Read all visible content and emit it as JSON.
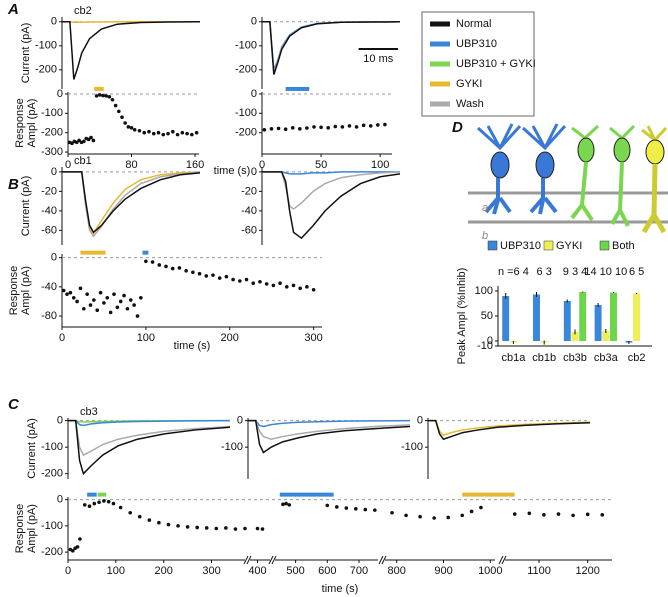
{
  "panels": [
    "A",
    "B",
    "C",
    "D"
  ],
  "legend": [
    {
      "name": "Normal",
      "color": "#111111"
    },
    {
      "name": "UBP310",
      "color": "#3a86d8"
    },
    {
      "name": "UBP310 + GYKI",
      "color": "#7ad64f"
    },
    {
      "name": "GYKI",
      "color": "#e8b830"
    },
    {
      "name": "Wash",
      "color": "#aaaaaa"
    }
  ],
  "diagram": {
    "labels": [
      "a",
      "b"
    ]
  },
  "chart_data": [
    {
      "type": "line",
      "label": "cb2",
      "ylabel": "Current (pA)",
      "xlim": [
        0,
        35
      ],
      "ylim": [
        -280,
        20
      ],
      "yticks": [
        0,
        -100,
        -200
      ],
      "zero_line": true,
      "x": [
        0,
        2,
        2.5,
        3,
        4,
        5,
        7,
        10,
        14,
        20,
        27,
        35
      ],
      "series": [
        {
          "color": "#e8b830",
          "values": [
            0,
            0,
            -1,
            -2,
            -2,
            -2,
            -1,
            -1,
            0,
            0,
            0,
            0
          ]
        },
        {
          "color": "#111111",
          "values": [
            0,
            0,
            -120,
            -240,
            -190,
            -130,
            -70,
            -30,
            -10,
            -3,
            -1,
            0
          ]
        }
      ]
    },
    {
      "type": "line",
      "xlim": [
        0,
        35
      ],
      "ylim": [
        -280,
        20
      ],
      "yticks": [
        0,
        -100,
        -200
      ],
      "zero_line": true,
      "scalebar": {
        "label": "10 ms",
        "length": 10
      },
      "x": [
        0,
        2,
        2.5,
        3,
        4,
        5,
        7,
        10,
        14,
        20,
        27,
        35
      ],
      "series": [
        {
          "color": "#3a86d8",
          "values": [
            0,
            0,
            -100,
            -200,
            -160,
            -105,
            -55,
            -22,
            -7,
            -2,
            -1,
            0
          ]
        },
        {
          "color": "#aaaaaa",
          "values": [
            0,
            0,
            -105,
            -210,
            -165,
            -110,
            -58,
            -24,
            -8,
            -2,
            -1,
            0
          ]
        },
        {
          "color": "#111111",
          "values": [
            0,
            0,
            -110,
            -220,
            -170,
            -115,
            -60,
            -25,
            -8,
            -2,
            -1,
            0
          ]
        }
      ]
    },
    {
      "type": "scatter",
      "ylabel": [
        "Response",
        "Ampl (pA)"
      ],
      "xlabel": "time (s)",
      "xlim": [
        0,
        165
      ],
      "xticks": [
        0,
        80,
        160
      ],
      "ylim": [
        -310,
        10
      ],
      "yticks": [
        0,
        -100,
        -200,
        -300
      ],
      "zero_line": true,
      "periods": [
        {
          "x": [
            33,
            45
          ],
          "color": "#e8b830"
        }
      ],
      "x": [
        2,
        5,
        8,
        11,
        14,
        17,
        20,
        23,
        26,
        29,
        32,
        36,
        40,
        44,
        48,
        52,
        56,
        60,
        64,
        68,
        72,
        76,
        80,
        84,
        90,
        96,
        102,
        108,
        114,
        120,
        126,
        132,
        138,
        144,
        150,
        156,
        162
      ],
      "values": [
        -250,
        -255,
        -245,
        -250,
        -240,
        -250,
        -245,
        -230,
        -235,
        -225,
        -240,
        -10,
        -5,
        -8,
        -10,
        -15,
        -30,
        -60,
        -90,
        -120,
        -150,
        -170,
        -175,
        -185,
        -190,
        -200,
        -195,
        -205,
        -200,
        -210,
        -205,
        -195,
        -210,
        -200,
        -205,
        -210,
        -200
      ]
    },
    {
      "type": "scatter",
      "xlim": [
        0,
        110
      ],
      "xticks": [
        0,
        50,
        100
      ],
      "ylim": [
        -310,
        10
      ],
      "yticks": [
        0,
        -100,
        -200
      ],
      "zero_line": true,
      "periods": [
        {
          "x": [
            20,
            40
          ],
          "color": "#3a86d8"
        }
      ],
      "x": [
        2,
        8,
        14,
        20,
        26,
        32,
        38,
        44,
        50,
        56,
        62,
        68,
        74,
        80,
        86,
        92,
        98,
        104
      ],
      "values": [
        -185,
        -180,
        -178,
        -182,
        -175,
        -180,
        -176,
        -170,
        -172,
        -175,
        -168,
        -170,
        -165,
        -170,
        -162,
        -165,
        -160,
        -158
      ]
    },
    {
      "type": "line",
      "label": "cb1",
      "ylabel": "Current (pA)",
      "xlim": [
        0,
        35
      ],
      "ylim": [
        -75,
        5
      ],
      "yticks": [
        0,
        -20,
        -40,
        -60
      ],
      "zero_line": true,
      "x": [
        0,
        3,
        5,
        6,
        7,
        8,
        10,
        13,
        16,
        20,
        25,
        30,
        35
      ],
      "series": [
        {
          "color": "#e8b830",
          "values": [
            0,
            0,
            0,
            -32,
            -58,
            -63,
            -50,
            -32,
            -18,
            -8,
            -3,
            -1,
            0
          ]
        },
        {
          "color": "#aaaaaa",
          "values": [
            0,
            0,
            0,
            -35,
            -60,
            -66,
            -56,
            -38,
            -24,
            -12,
            -5,
            -2,
            0
          ]
        },
        {
          "color": "#111111",
          "values": [
            0,
            0,
            0,
            -30,
            -55,
            -62,
            -55,
            -40,
            -28,
            -17,
            -8,
            -3,
            -1
          ]
        }
      ]
    },
    {
      "type": "line",
      "xlim": [
        0,
        35
      ],
      "ylim": [
        -75,
        5
      ],
      "yticks": [
        0,
        -20,
        -40,
        -60
      ],
      "zero_line": true,
      "x": [
        0,
        3,
        5,
        6,
        7,
        8,
        10,
        13,
        16,
        20,
        25,
        30,
        35
      ],
      "series": [
        {
          "color": "#3a86d8",
          "values": [
            0,
            0,
            0,
            -1,
            -2,
            -2,
            -2,
            -1,
            -1,
            0,
            0,
            0,
            0
          ]
        },
        {
          "color": "#aaaaaa",
          "values": [
            0,
            0,
            0,
            -15,
            -35,
            -38,
            -32,
            -20,
            -12,
            -6,
            -3,
            -1,
            0
          ]
        },
        {
          "color": "#111111",
          "values": [
            0,
            0,
            0,
            -10,
            -40,
            -62,
            -68,
            -55,
            -40,
            -25,
            -12,
            -5,
            -2
          ]
        }
      ]
    },
    {
      "type": "scatter",
      "ylabel": [
        "Response",
        "Ampl (pA)"
      ],
      "xlabel": "time (s)",
      "xlim": [
        0,
        310
      ],
      "xticks": [
        0,
        100,
        200,
        300
      ],
      "ylim": [
        -95,
        5
      ],
      "yticks": [
        0,
        -40,
        -80
      ],
      "zero_line": true,
      "periods": [
        {
          "x": [
            22,
            52
          ],
          "color": "#e8b830"
        },
        {
          "x": [
            96,
            103
          ],
          "color": "#3a86d8"
        }
      ],
      "x": [
        2,
        6,
        10,
        14,
        18,
        22,
        26,
        30,
        34,
        38,
        42,
        46,
        50,
        54,
        58,
        62,
        66,
        70,
        74,
        78,
        82,
        86,
        90,
        94,
        100,
        108,
        116,
        124,
        132,
        140,
        148,
        156,
        164,
        172,
        180,
        188,
        196,
        204,
        212,
        220,
        228,
        236,
        244,
        252,
        260,
        268,
        276,
        284,
        292,
        300
      ],
      "values": [
        -45,
        -50,
        -48,
        -55,
        -60,
        -42,
        -70,
        -50,
        -65,
        -58,
        -72,
        -48,
        -62,
        -55,
        -75,
        -50,
        -68,
        -60,
        -52,
        -70,
        -58,
        -65,
        -80,
        -55,
        -5,
        -6,
        -10,
        -12,
        -15,
        -14,
        -18,
        -20,
        -22,
        -25,
        -24,
        -28,
        -26,
        -30,
        -32,
        -30,
        -35,
        -33,
        -36,
        -38,
        -35,
        -40,
        -38,
        -42,
        -40,
        -44
      ]
    },
    {
      "type": "line",
      "label": "cb3",
      "ylabel": "Current (pA)",
      "xlim": [
        0,
        42
      ],
      "ylim": [
        -220,
        10
      ],
      "yticks": [
        0,
        -100,
        -200
      ],
      "zero_line": true,
      "x": [
        0,
        2,
        3,
        4,
        6,
        9,
        13,
        18,
        25,
        33,
        42
      ],
      "series": [
        {
          "color": "#7ad64f",
          "values": [
            0,
            0,
            -4,
            -5,
            -4,
            -3,
            -2,
            -1,
            -1,
            0,
            0
          ]
        },
        {
          "color": "#3a86d8",
          "values": [
            0,
            0,
            -15,
            -18,
            -12,
            -8,
            -5,
            -3,
            -2,
            -1,
            0
          ]
        },
        {
          "color": "#aaaaaa",
          "values": [
            0,
            0,
            -100,
            -130,
            -115,
            -90,
            -70,
            -55,
            -40,
            -30,
            -22
          ]
        },
        {
          "color": "#111111",
          "values": [
            0,
            0,
            -150,
            -200,
            -170,
            -130,
            -95,
            -70,
            -50,
            -35,
            -25
          ]
        }
      ]
    },
    {
      "type": "line",
      "xlim": [
        0,
        42
      ],
      "ylim": [
        -220,
        10
      ],
      "yticks": [
        0,
        -100
      ],
      "zero_line": true,
      "x": [
        0,
        2,
        3,
        4,
        6,
        9,
        13,
        18,
        25,
        33,
        42
      ],
      "series": [
        {
          "color": "#3a86d8",
          "values": [
            0,
            0,
            -18,
            -22,
            -15,
            -10,
            -6,
            -4,
            -2,
            -1,
            0
          ]
        },
        {
          "color": "#aaaaaa",
          "values": [
            0,
            0,
            -40,
            -60,
            -70,
            -60,
            -50,
            -40,
            -30,
            -22,
            -16
          ]
        },
        {
          "color": "#111111",
          "values": [
            0,
            0,
            -90,
            -120,
            -100,
            -80,
            -65,
            -50,
            -38,
            -30,
            -22
          ]
        }
      ]
    },
    {
      "type": "line",
      "xlim": [
        0,
        42
      ],
      "ylim": [
        -220,
        10
      ],
      "yticks": [
        0,
        -100
      ],
      "zero_line": true,
      "x": [
        0,
        2,
        3,
        4,
        6,
        9,
        13,
        18,
        25,
        33,
        42
      ],
      "series": [
        {
          "color": "#e8b830",
          "values": [
            0,
            0,
            -40,
            -55,
            -45,
            -35,
            -27,
            -20,
            -14,
            -10,
            -6
          ]
        },
        {
          "color": "#111111",
          "values": [
            0,
            0,
            -50,
            -70,
            -60,
            -45,
            -35,
            -25,
            -18,
            -12,
            -8
          ]
        }
      ]
    },
    {
      "type": "scatter",
      "ylabel": [
        "Response",
        "Ampl (pA)"
      ],
      "xlabel": "time (s)",
      "ylim": [
        -230,
        10
      ],
      "yticks": [
        0,
        -100,
        -200
      ],
      "zero_line": true,
      "x_segments": [
        {
          "xlim": [
            0,
            370
          ],
          "xticks": [
            0,
            100,
            200,
            300
          ]
        },
        {
          "xlim": [
            385,
            425
          ],
          "xticks": [
            400
          ]
        },
        {
          "xlim": [
            435,
            760
          ],
          "xticks": [
            500,
            600,
            700
          ]
        },
        {
          "xlim": [
            775,
            1010
          ],
          "xticks": [
            800,
            900,
            1000
          ]
        },
        {
          "xlim": [
            1030,
            1250
          ],
          "xticks": [
            1100,
            1200
          ]
        }
      ],
      "periods": [
        {
          "x": [
            40,
            60
          ],
          "color": "#3a86d8"
        },
        {
          "x": [
            62,
            80
          ],
          "color": "#7ad64f"
        },
        {
          "x": [
            450,
            620
          ],
          "color": "#3a86d8"
        },
        {
          "x": [
            940,
            1050
          ],
          "color": "#e8b830"
        }
      ],
      "x": [
        5,
        10,
        15,
        20,
        25,
        35,
        45,
        55,
        65,
        75,
        85,
        95,
        110,
        130,
        150,
        170,
        190,
        210,
        230,
        250,
        270,
        290,
        310,
        330,
        350,
        370,
        400,
        410,
        460,
        470,
        480,
        600,
        630,
        660,
        690,
        720,
        750,
        790,
        820,
        850,
        880,
        910,
        940,
        960,
        980,
        1050,
        1080,
        1110,
        1140,
        1170,
        1200,
        1230
      ],
      "values": [
        -190,
        -195,
        -185,
        -180,
        -150,
        -20,
        -25,
        -15,
        -10,
        -5,
        -8,
        -15,
        -30,
        -50,
        -65,
        -78,
        -88,
        -95,
        -100,
        -104,
        -106,
        -108,
        -110,
        -108,
        -112,
        -110,
        -110,
        -112,
        -18,
        -15,
        -20,
        -22,
        -28,
        -32,
        -35,
        -38,
        -40,
        -50,
        -60,
        -65,
        -70,
        -68,
        -60,
        -45,
        -30,
        -55,
        -52,
        -58,
        -55,
        -60,
        -56,
        -58
      ]
    },
    {
      "type": "bar",
      "ylabel": "Peak Ampl (%Inhib)",
      "ylim": [
        -10,
        110
      ],
      "yticks": [
        100,
        50,
        0,
        -10
      ],
      "categories": [
        "cb1a",
        "cb1b",
        "cb3b",
        "cb3a",
        "cb2"
      ],
      "n_labels": [
        "n =6 4",
        "6 3",
        "9 3 4",
        "14 10 10",
        "6 5"
      ],
      "series": [
        {
          "name": "UBP310",
          "color": "#3a86d8",
          "values": [
            90,
            93,
            80,
            72,
            -3
          ],
          "errors": [
            6,
            5,
            3,
            4,
            3
          ]
        },
        {
          "name": "GYKI",
          "color": "#eeee55",
          "values": [
            -3,
            -3,
            18,
            20,
            95
          ],
          "errors": [
            3,
            4,
            5,
            4,
            1
          ]
        },
        {
          "name": "Both",
          "color": "#6cd64a",
          "values": [
            null,
            null,
            98,
            97,
            null
          ],
          "errors": [
            null,
            null,
            1,
            1,
            null
          ]
        }
      ]
    }
  ]
}
